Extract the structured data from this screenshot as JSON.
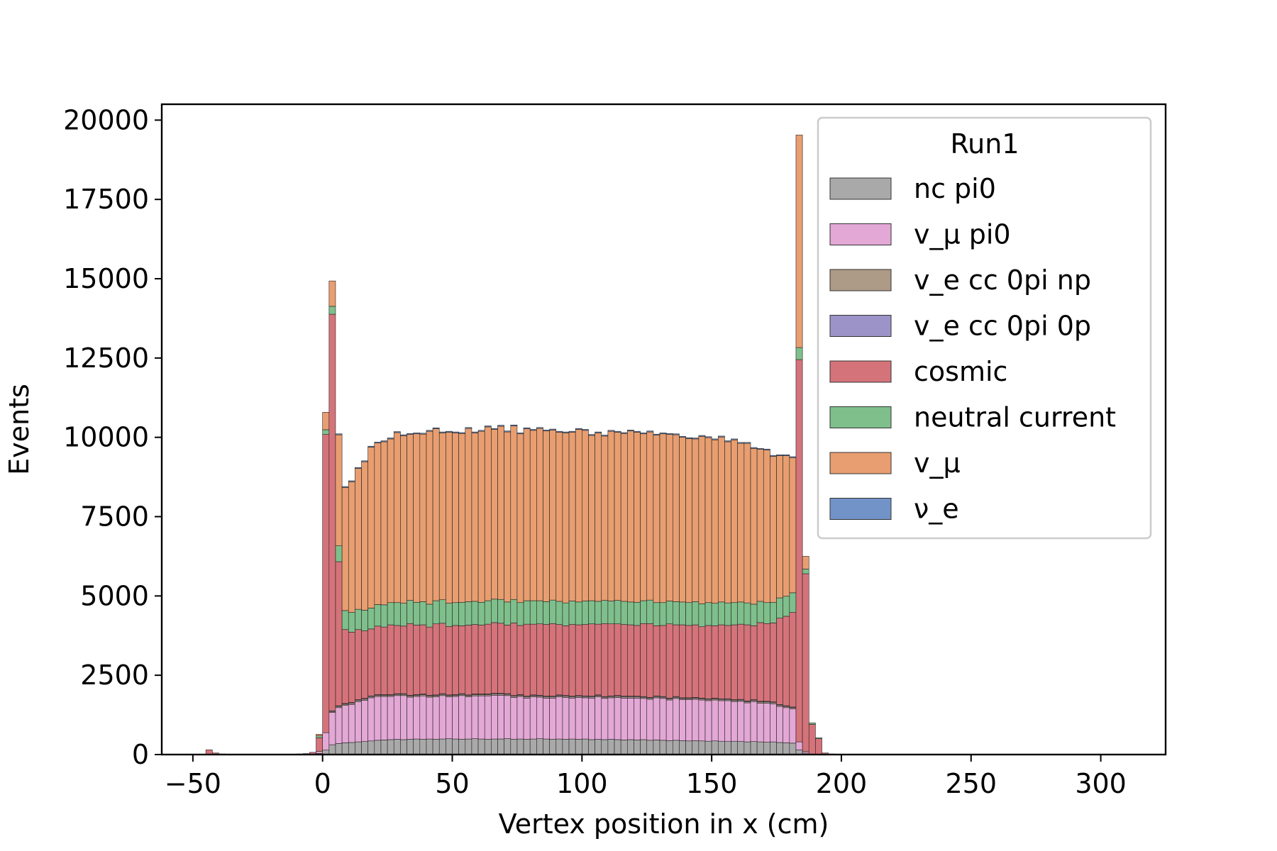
{
  "chart_data": {
    "type": "bar",
    "stacked": true,
    "histogram": true,
    "xlabel": "Vertex position in x (cm)",
    "ylabel": "Events",
    "xlim": [
      -62,
      325
    ],
    "ylim": [
      0,
      20500
    ],
    "xticks": [
      -50,
      0,
      50,
      100,
      150,
      200,
      250,
      300
    ],
    "xtick_labels": [
      "−50",
      "0",
      "50",
      "100",
      "150",
      "200",
      "250",
      "300"
    ],
    "yticks": [
      0,
      2500,
      5000,
      7500,
      10000,
      12500,
      15000,
      17500,
      20000
    ],
    "ytick_labels": [
      "0",
      "2500",
      "5000",
      "7500",
      "10000",
      "12500",
      "15000",
      "17500",
      "20000"
    ],
    "bin_start": -45,
    "bin_width": 2.5,
    "legend": {
      "title": "Run1",
      "placement": "upper right",
      "entries": [
        "nc pi0",
        "v_μ pi0",
        "v_e cc 0pi np",
        "v_e cc 0pi 0p",
        "cosmic",
        "neutral current",
        "v_μ",
        "ν_e"
      ]
    },
    "series": [
      {
        "name": "nc pi0",
        "color": "#a9a9a9",
        "values": [
          0,
          0,
          0,
          0,
          0,
          0,
          0,
          0,
          0,
          0,
          0,
          0,
          0,
          0,
          0,
          0,
          0,
          40,
          140,
          310,
          350,
          370,
          380,
          400,
          410,
          430,
          450,
          460,
          470,
          480,
          470,
          480,
          490,
          480,
          490,
          480,
          490,
          500,
          490,
          480,
          490,
          500,
          490,
          480,
          490,
          490,
          500,
          480,
          490,
          480,
          490,
          500,
          490,
          480,
          490,
          480,
          490,
          480,
          490,
          470,
          480,
          470,
          480,
          470,
          460,
          470,
          460,
          470,
          450,
          460,
          450,
          440,
          450,
          440,
          430,
          440,
          430,
          420,
          430,
          420,
          410,
          420,
          410,
          400,
          410,
          400,
          390,
          400,
          380,
          370,
          360,
          150,
          50,
          0,
          0,
          0,
          0,
          0,
          0,
          0,
          0,
          0,
          0,
          0,
          0,
          0,
          0,
          0,
          0,
          0,
          0,
          0,
          0,
          0,
          0,
          0,
          0,
          0,
          0,
          0,
          0,
          0,
          0,
          0,
          0,
          0,
          0,
          0,
          0,
          0,
          0,
          0,
          0,
          0,
          0,
          0,
          0,
          0,
          0,
          0,
          0,
          0,
          0,
          0,
          0,
          0,
          0,
          0,
          0,
          0,
          0,
          0,
          0,
          0,
          0,
          0,
          0,
          0,
          0,
          0,
          0
        ]
      },
      {
        "name": "v_μ pi0",
        "color": "#e3a8d6",
        "values": [
          0,
          0,
          0,
          0,
          0,
          0,
          0,
          0,
          0,
          0,
          0,
          0,
          0,
          0,
          0,
          0,
          0,
          60,
          550,
          1020,
          1130,
          1180,
          1200,
          1270,
          1300,
          1360,
          1380,
          1370,
          1360,
          1380,
          1390,
          1330,
          1340,
          1370,
          1320,
          1340,
          1370,
          1320,
          1340,
          1380,
          1330,
          1350,
          1360,
          1370,
          1380,
          1380,
          1360,
          1320,
          1340,
          1300,
          1330,
          1310,
          1290,
          1300,
          1330,
          1320,
          1290,
          1320,
          1300,
          1310,
          1340,
          1300,
          1310,
          1330,
          1320,
          1310,
          1320,
          1300,
          1290,
          1330,
          1320,
          1280,
          1320,
          1290,
          1300,
          1300,
          1290,
          1280,
          1290,
          1280,
          1290,
          1250,
          1270,
          1230,
          1260,
          1220,
          1230,
          1200,
          1140,
          1110,
          1080,
          250,
          50,
          0,
          0,
          0,
          0,
          0,
          0,
          0,
          0,
          0,
          0,
          0,
          0,
          0,
          0,
          0,
          0,
          0,
          0,
          0,
          0,
          0,
          0,
          0,
          0,
          0,
          0,
          0,
          0,
          0,
          0,
          0,
          0,
          0,
          0,
          0,
          0,
          0,
          0,
          0,
          0,
          0,
          0,
          0,
          0,
          0,
          0,
          0,
          0,
          0,
          0,
          0,
          0,
          0,
          0,
          0,
          0,
          0,
          0,
          0,
          0,
          0,
          0,
          0,
          0,
          0,
          0,
          0,
          0
        ]
      },
      {
        "name": "v_e cc 0pi np",
        "color": "#ad9a87",
        "values": [
          0,
          0,
          0,
          0,
          0,
          0,
          0,
          0,
          0,
          0,
          0,
          0,
          0,
          0,
          0,
          0,
          0,
          0,
          0,
          30,
          40,
          40,
          40,
          40,
          40,
          40,
          40,
          40,
          40,
          40,
          40,
          40,
          40,
          40,
          40,
          40,
          40,
          40,
          40,
          40,
          40,
          40,
          40,
          40,
          40,
          40,
          40,
          40,
          40,
          40,
          40,
          40,
          40,
          40,
          40,
          40,
          40,
          40,
          40,
          40,
          40,
          40,
          40,
          40,
          40,
          40,
          40,
          40,
          40,
          40,
          40,
          40,
          40,
          40,
          40,
          40,
          40,
          40,
          40,
          40,
          40,
          40,
          40,
          40,
          40,
          40,
          40,
          40,
          40,
          40,
          40,
          0,
          0,
          0,
          0,
          0,
          0,
          0,
          0,
          0,
          0,
          0,
          0,
          0,
          0,
          0,
          0,
          0,
          0,
          0,
          0,
          0,
          0,
          0,
          0,
          0,
          0,
          0,
          0,
          0,
          0,
          0,
          0,
          0,
          0,
          0,
          0,
          0,
          0,
          0,
          0,
          0,
          0,
          0,
          0,
          0,
          0,
          0,
          0,
          0,
          0,
          0,
          0,
          0,
          0,
          0,
          0,
          0,
          0,
          0,
          0,
          0,
          0,
          0,
          0,
          0,
          0,
          0,
          0
        ]
      },
      {
        "name": "v_e cc 0pi 0p",
        "color": "#9c94c8",
        "values": [
          0,
          0,
          0,
          0,
          0,
          0,
          0,
          0,
          0,
          0,
          0,
          0,
          0,
          0,
          0,
          0,
          0,
          0,
          0,
          20,
          20,
          20,
          20,
          20,
          20,
          20,
          20,
          20,
          20,
          20,
          20,
          20,
          20,
          20,
          20,
          20,
          20,
          20,
          20,
          20,
          20,
          20,
          20,
          20,
          20,
          20,
          20,
          20,
          20,
          20,
          20,
          20,
          20,
          20,
          20,
          20,
          20,
          20,
          20,
          20,
          20,
          20,
          20,
          20,
          20,
          20,
          20,
          20,
          20,
          20,
          20,
          20,
          20,
          20,
          20,
          20,
          20,
          20,
          20,
          20,
          20,
          20,
          20,
          20,
          20,
          20,
          20,
          20,
          20,
          20,
          20,
          0,
          0,
          0,
          0,
          0,
          0,
          0,
          0,
          0,
          0,
          0,
          0,
          0,
          0,
          0,
          0,
          0,
          0,
          0,
          0,
          0,
          0,
          0,
          0,
          0,
          0,
          0,
          0,
          0,
          0,
          0,
          0,
          0,
          0,
          0,
          0,
          0,
          0,
          0,
          0,
          0,
          0,
          0,
          0,
          0,
          0,
          0,
          0,
          0,
          0,
          0,
          0,
          0,
          0,
          0,
          0,
          0,
          0,
          0,
          0,
          0,
          0,
          0,
          0,
          0,
          0,
          0,
          0,
          0
        ]
      },
      {
        "name": "cosmic",
        "color": "#d5737a",
        "values": [
          150,
          50,
          20,
          10,
          0,
          0,
          0,
          0,
          0,
          0,
          0,
          0,
          0,
          0,
          20,
          30,
          70,
          430,
          9400,
          12500,
          4540,
          2330,
          2220,
          2210,
          2130,
          2110,
          2160,
          2130,
          2200,
          2150,
          2130,
          2260,
          2190,
          2180,
          2150,
          2240,
          2220,
          2160,
          2180,
          2140,
          2200,
          2190,
          2170,
          2200,
          2230,
          2210,
          2160,
          2290,
          2180,
          2270,
          2230,
          2250,
          2260,
          2290,
          2220,
          2200,
          2260,
          2230,
          2250,
          2280,
          2230,
          2300,
          2270,
          2260,
          2260,
          2250,
          2230,
          2300,
          2330,
          2210,
          2240,
          2340,
          2260,
          2300,
          2280,
          2290,
          2250,
          2310,
          2280,
          2330,
          2310,
          2360,
          2370,
          2400,
          2330,
          2480,
          2450,
          2490,
          2720,
          2820,
          2980,
          12050,
          5600,
          950,
          500,
          50,
          20,
          10,
          0,
          0,
          0,
          0,
          0,
          0,
          0,
          0,
          0,
          0,
          0,
          0,
          0,
          0,
          0,
          0,
          0,
          0,
          0,
          0,
          0,
          0,
          0,
          0,
          0,
          0,
          0,
          0,
          0,
          0,
          0,
          0,
          0,
          0,
          0,
          0,
          0,
          0,
          0,
          0,
          0,
          0,
          0,
          0,
          0,
          0,
          0,
          0,
          0,
          0,
          0,
          0,
          0,
          0,
          0,
          0,
          0,
          0,
          0,
          0,
          0,
          0,
          0,
          0
        ]
      },
      {
        "name": "neutral current",
        "color": "#7fbf8c",
        "values": [
          0,
          0,
          0,
          0,
          0,
          0,
          0,
          0,
          0,
          0,
          0,
          0,
          0,
          0,
          0,
          0,
          0,
          60,
          150,
          250,
          500,
          600,
          620,
          640,
          650,
          660,
          680,
          700,
          700,
          720,
          720,
          730,
          720,
          730,
          720,
          730,
          740,
          730,
          720,
          740,
          740,
          730,
          720,
          740,
          740,
          750,
          730,
          740,
          720,
          740,
          740,
          730,
          720,
          740,
          730,
          720,
          740,
          720,
          740,
          730,
          720,
          730,
          720,
          740,
          730,
          720,
          730,
          720,
          740,
          730,
          720,
          720,
          730,
          720,
          720,
          730,
          720,
          720,
          710,
          720,
          710,
          700,
          700,
          690,
          680,
          670,
          660,
          650,
          640,
          630,
          620,
          380,
          150,
          50,
          30,
          0,
          0,
          0,
          0,
          0,
          0,
          0,
          0,
          0,
          0,
          0,
          0,
          0,
          0,
          0,
          0,
          0,
          0,
          0,
          0,
          0,
          0,
          0,
          0,
          0,
          0,
          0,
          0,
          0,
          0,
          0,
          0,
          0,
          0,
          0,
          0,
          0,
          0,
          0,
          0,
          0,
          0,
          0,
          0,
          0,
          0,
          0,
          0,
          0,
          0,
          0,
          0,
          0,
          0,
          0,
          0,
          0,
          0,
          0,
          0,
          0,
          0,
          0,
          0,
          0,
          0
        ]
      },
      {
        "name": "v_μ",
        "color": "#e89e70",
        "values": [
          0,
          0,
          0,
          0,
          0,
          0,
          0,
          0,
          0,
          0,
          0,
          0,
          0,
          0,
          0,
          0,
          0,
          50,
          550,
          800,
          3500,
          3880,
          4120,
          4440,
          4680,
          5070,
          5090,
          5140,
          5160,
          5360,
          5280,
          5230,
          5310,
          5280,
          5450,
          5420,
          5260,
          5390,
          5350,
          5320,
          5460,
          5310,
          5390,
          5480,
          5350,
          5460,
          5360,
          5470,
          5320,
          5420,
          5370,
          5430,
          5380,
          5360,
          5330,
          5360,
          5320,
          5440,
          5380,
          5210,
          5310,
          5180,
          5350,
          5300,
          5290,
          5390,
          5360,
          5260,
          5300,
          5280,
          5320,
          5250,
          5260,
          5190,
          5170,
          5130,
          5280,
          5200,
          5150,
          5200,
          5080,
          5130,
          5000,
          5030,
          4910,
          4790,
          4810,
          4600,
          4480,
          4430,
          4260,
          6700,
          400,
          0,
          0,
          0,
          0,
          0,
          0,
          0,
          0,
          0,
          0,
          0,
          0,
          0,
          0,
          0,
          0,
          0,
          0,
          0,
          0,
          0,
          0,
          0,
          0,
          0,
          0,
          0,
          0,
          0,
          0,
          0,
          0,
          0,
          0,
          0,
          0,
          0,
          0,
          0,
          0,
          0,
          0,
          0,
          0,
          0,
          0,
          0,
          0,
          0,
          0,
          0,
          0,
          0,
          0,
          0,
          0,
          0,
          0,
          0,
          0,
          0,
          0,
          0,
          0,
          0,
          0,
          0,
          0,
          0
        ]
      },
      {
        "name": "ν_e",
        "color": "#7293c8",
        "values": [
          0,
          0,
          0,
          0,
          0,
          0,
          0,
          0,
          0,
          0,
          0,
          0,
          0,
          0,
          0,
          0,
          0,
          0,
          0,
          0,
          30,
          30,
          30,
          30,
          30,
          30,
          30,
          30,
          30,
          30,
          30,
          30,
          30,
          30,
          30,
          30,
          30,
          30,
          30,
          30,
          30,
          30,
          30,
          30,
          30,
          30,
          30,
          30,
          30,
          30,
          30,
          30,
          30,
          30,
          30,
          30,
          30,
          30,
          30,
          30,
          30,
          30,
          30,
          30,
          30,
          30,
          30,
          30,
          30,
          30,
          30,
          30,
          30,
          30,
          30,
          30,
          30,
          30,
          30,
          30,
          30,
          30,
          30,
          30,
          30,
          30,
          30,
          30,
          30,
          30,
          30,
          0,
          0,
          0,
          0,
          0,
          0,
          0,
          0,
          0,
          0,
          0,
          0,
          0,
          0,
          0,
          0,
          0,
          0,
          0,
          0,
          0,
          0,
          0,
          0,
          0,
          0,
          0,
          0,
          0,
          0,
          0,
          0,
          0,
          0,
          0,
          0,
          0,
          0,
          0,
          0,
          0,
          0,
          0,
          0,
          0,
          0,
          0,
          0,
          0,
          0,
          0,
          0,
          0,
          0,
          0,
          0,
          0,
          0,
          0,
          0,
          0,
          0,
          0,
          0,
          0,
          0,
          0,
          0,
          0
        ]
      }
    ],
    "tail_right": [
      0,
      10,
      20,
      30,
      40,
      50,
      60,
      80,
      120,
      190
    ]
  }
}
